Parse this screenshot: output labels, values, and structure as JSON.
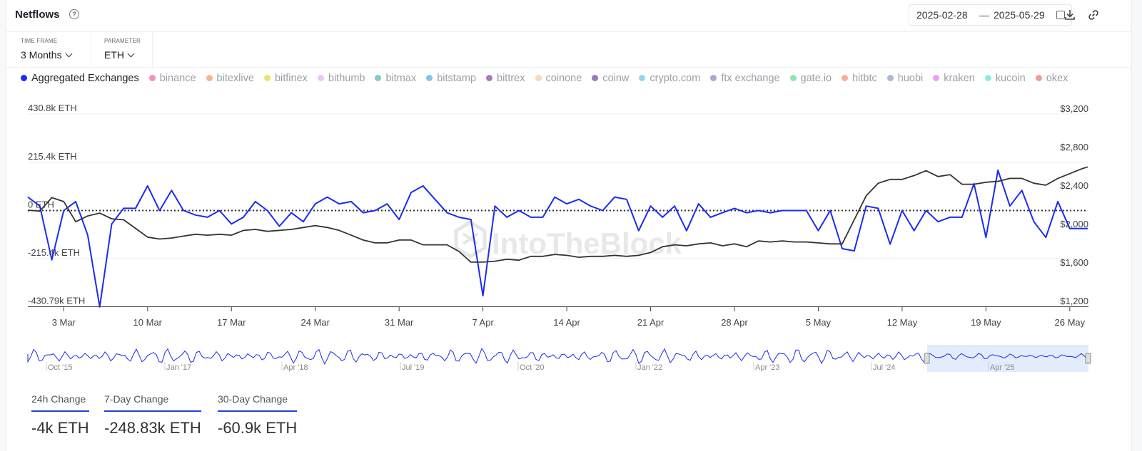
{
  "header": {
    "title": "Netflows",
    "help_icon": "question-circle-icon",
    "date_from": "2025-02-28",
    "date_sep": "—",
    "date_to": "2025-05-29",
    "calendar_icon": "calendar-icon",
    "download_icon": "download-icon",
    "link_icon": "link-icon"
  },
  "filters": {
    "timeframe_label": "TIME FRAME",
    "timeframe_value": "3 Months",
    "parameter_label": "PARAMETER",
    "parameter_value": "ETH"
  },
  "legend": [
    {
      "name": "Aggregated Exchanges",
      "color": "#1b2cf0",
      "active": true
    },
    {
      "name": "binance",
      "color": "#f58fbf",
      "active": false
    },
    {
      "name": "bitexlive",
      "color": "#f7b48e",
      "active": false
    },
    {
      "name": "bitfinex",
      "color": "#eee26a",
      "active": false
    },
    {
      "name": "bithumb",
      "color": "#ecc6f7",
      "active": false
    },
    {
      "name": "bitmax",
      "color": "#86c7c9",
      "active": false
    },
    {
      "name": "bitstamp",
      "color": "#86c1ee",
      "active": false
    },
    {
      "name": "bittrex",
      "color": "#a77bbb",
      "active": false
    },
    {
      "name": "coinone",
      "color": "#f7d8bd",
      "active": false
    },
    {
      "name": "coinw",
      "color": "#9a79b5",
      "active": false
    },
    {
      "name": "crypto.com",
      "color": "#92d2f7",
      "active": false
    },
    {
      "name": "ftx exchange",
      "color": "#a8a6da",
      "active": false
    },
    {
      "name": "gate.io",
      "color": "#8de6ad",
      "active": false
    },
    {
      "name": "hitbtc",
      "color": "#f7ab9c",
      "active": false
    },
    {
      "name": "huobi",
      "color": "#aab9d4",
      "active": false
    },
    {
      "name": "kraken",
      "color": "#ee9ef2",
      "active": false
    },
    {
      "name": "kucoin",
      "color": "#8ee9de",
      "active": false
    },
    {
      "name": "okex",
      "color": "#f59a9a",
      "active": false
    }
  ],
  "watermark": "IntoTheBlock",
  "chart_data": {
    "type": "line",
    "left_axis_ticks": [
      "430.8k ETH",
      "215.4k ETH",
      "0 ETH",
      "-215.4k ETH",
      "-430.79k ETH"
    ],
    "left_axis_values": [
      430800,
      215400,
      0,
      -215400,
      -430790
    ],
    "right_axis_ticks": [
      "$3,200",
      "$2,800",
      "$2,400",
      "$2,000",
      "$1,600",
      "$1,200"
    ],
    "right_axis_values": [
      3200,
      2800,
      2400,
      2000,
      1600,
      1200
    ],
    "x_ticks": [
      "3 Mar",
      "10 Mar",
      "17 Mar",
      "24 Mar",
      "31 Mar",
      "7 Apr",
      "14 Apr",
      "21 Apr",
      "28 Apr",
      "5 May",
      "12 May",
      "19 May",
      "26 May"
    ],
    "x_tick_days": [
      3,
      10,
      17,
      24,
      31,
      38,
      45,
      52,
      59,
      66,
      73,
      80,
      87
    ],
    "x_day_range": [
      0,
      88.5
    ],
    "series": [
      {
        "name": "Aggregated Exchanges",
        "color": "#1b2cf0",
        "axis": "left",
        "x_days": [
          0,
          1,
          2,
          3,
          4,
          5,
          6,
          7,
          8,
          9,
          10,
          11,
          12,
          13,
          14,
          15,
          16,
          17,
          18,
          19,
          20,
          21,
          22,
          23,
          24,
          25,
          26,
          27,
          28,
          29,
          30,
          31,
          32,
          33,
          34,
          35,
          36,
          37,
          38,
          39,
          40,
          41,
          42,
          43,
          44,
          45,
          46,
          47,
          48,
          49,
          50,
          51,
          52,
          53,
          54,
          55,
          56,
          57,
          58,
          59,
          60,
          61,
          62,
          63,
          64,
          65,
          66,
          67,
          68,
          69,
          70,
          71,
          72,
          73,
          74,
          75,
          76,
          77,
          78,
          79,
          80,
          81,
          82,
          83,
          84,
          85,
          86,
          87,
          88,
          88.5
        ],
        "values": [
          60000,
          20000,
          -220000,
          0,
          40000,
          -110000,
          -430000,
          -60000,
          10000,
          10000,
          110000,
          0,
          90000,
          0,
          -20000,
          -30000,
          0,
          -60000,
          -30000,
          40000,
          0,
          -70000,
          -10000,
          -50000,
          30000,
          60000,
          30000,
          40000,
          -10000,
          0,
          30000,
          -40000,
          80000,
          110000,
          50000,
          -10000,
          -30000,
          -40000,
          -380000,
          20000,
          -30000,
          0,
          -30000,
          -30000,
          60000,
          30000,
          50000,
          20000,
          0,
          60000,
          50000,
          -90000,
          20000,
          -30000,
          20000,
          -90000,
          30000,
          -30000,
          -10000,
          10000,
          -10000,
          0,
          -10000,
          0,
          0,
          0,
          -90000,
          0,
          -170000,
          -180000,
          20000,
          10000,
          -150000,
          0,
          -90000,
          0,
          -50000,
          -30000,
          -30000,
          120000,
          -120000,
          180000,
          20000,
          90000,
          -50000,
          -120000,
          40000,
          -80000,
          -80000,
          -80000
        ]
      },
      {
        "name": "Price",
        "color": "#333333",
        "axis": "right",
        "x_days": [
          0,
          1,
          2,
          3,
          4,
          5,
          6,
          7,
          8,
          9,
          10,
          11,
          12,
          13,
          14,
          15,
          16,
          17,
          18,
          19,
          20,
          21,
          22,
          23,
          24,
          25,
          26,
          27,
          28,
          29,
          30,
          31,
          32,
          33,
          34,
          35,
          36,
          37,
          38,
          39,
          40,
          41,
          42,
          43,
          44,
          45,
          46,
          47,
          48,
          49,
          50,
          51,
          52,
          53,
          54,
          55,
          56,
          57,
          58,
          59,
          60,
          61,
          62,
          63,
          64,
          65,
          66,
          67,
          68,
          69,
          70,
          71,
          72,
          73,
          74,
          75,
          76,
          77,
          78,
          79,
          80,
          81,
          82,
          83,
          84,
          85,
          86,
          87,
          88,
          88.5
        ],
        "values": [
          2200,
          2190,
          2330,
          2290,
          2080,
          2140,
          2170,
          2110,
          2100,
          2010,
          1920,
          1900,
          1910,
          1930,
          1950,
          1940,
          1950,
          1940,
          1990,
          2000,
          1980,
          1990,
          2000,
          2020,
          2040,
          2020,
          1990,
          1940,
          1890,
          1860,
          1860,
          1890,
          1890,
          1840,
          1840,
          1840,
          1770,
          1660,
          1660,
          1670,
          1690,
          1680,
          1720,
          1720,
          1740,
          1730,
          1710,
          1720,
          1720,
          1730,
          1720,
          1730,
          1760,
          1820,
          1840,
          1830,
          1850,
          1860,
          1830,
          1850,
          1820,
          1880,
          1870,
          1880,
          1870,
          1870,
          1860,
          1850,
          1850,
          2100,
          2350,
          2480,
          2520,
          2520,
          2560,
          2610,
          2550,
          2570,
          2470,
          2470,
          2490,
          2500,
          2530,
          2530,
          2480,
          2460,
          2530,
          2580,
          2630,
          2650
        ]
      }
    ],
    "overview_x_ticks": [
      "Oct '15",
      "Jan '17",
      "Apr '18",
      "Jul '19",
      "Oct '20",
      "Jan '22",
      "Apr '23",
      "Jul '24",
      "Apr '25"
    ]
  },
  "stats": [
    {
      "label": "24h Change",
      "value": "-4k ETH"
    },
    {
      "label": "7-Day Change",
      "value": "-248.83k ETH"
    },
    {
      "label": "30-Day Change",
      "value": "-60.9k ETH"
    }
  ]
}
